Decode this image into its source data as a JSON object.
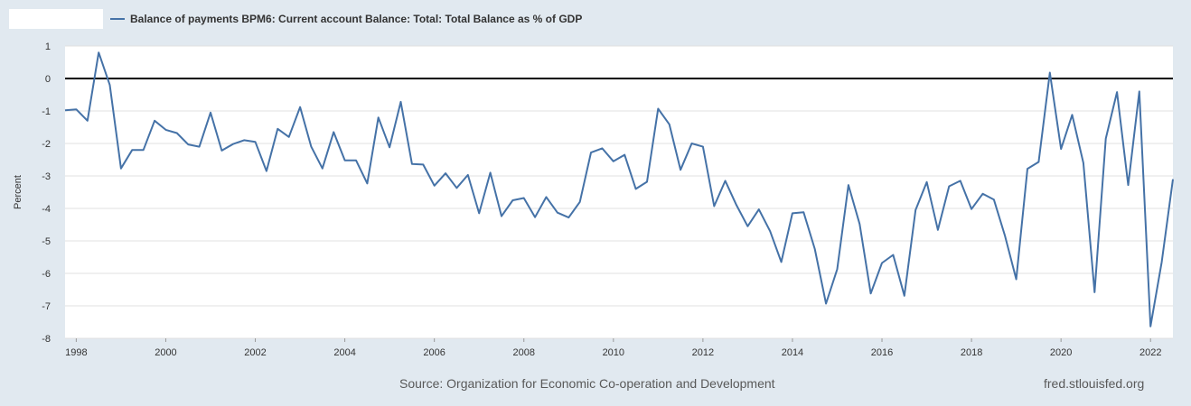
{
  "colors": {
    "series": "#4572a7",
    "zero_line": "#000000",
    "grid": "#e0e0e0",
    "plot_bg": "#ffffff"
  },
  "legend": {
    "label": "Balance of payments BPM6: Current account Balance: Total: Total Balance as % of GDP"
  },
  "footer": {
    "source": "Source: Organization for Economic Co-operation and Development",
    "brand": "fred.stlouisfed.org"
  },
  "chart_data": {
    "type": "line",
    "title": "",
    "xlabel": "",
    "ylabel": "Percent",
    "xlim": [
      1997.75,
      2022.5
    ],
    "ylim": [
      -8,
      1
    ],
    "yticks": [
      "1",
      "0",
      "-1",
      "-2",
      "-3",
      "-4",
      "-5",
      "-6",
      "-7",
      "-8"
    ],
    "xticks": [
      "1998",
      "2000",
      "2002",
      "2004",
      "2006",
      "2008",
      "2010",
      "2012",
      "2014",
      "2016",
      "2018",
      "2020",
      "2022"
    ],
    "reference_line": 0,
    "series": [
      {
        "name": "Balance of payments BPM6: Current account Balance: Total: Total Balance as % of GDP",
        "frequency": "quarterly",
        "start": 1997.75,
        "step": 0.25,
        "values": [
          -0.98,
          -0.95,
          -1.3,
          0.8,
          -0.2,
          -2.77,
          -2.2,
          -2.2,
          -1.3,
          -1.58,
          -1.68,
          -2.03,
          -2.1,
          -1.05,
          -2.22,
          -2.02,
          -1.9,
          -1.95,
          -2.85,
          -1.55,
          -1.8,
          -0.88,
          -2.1,
          -2.77,
          -1.65,
          -2.52,
          -2.52,
          -3.23,
          -1.2,
          -2.12,
          -0.72,
          -2.63,
          -2.65,
          -3.3,
          -2.92,
          -3.37,
          -2.97,
          -4.15,
          -2.9,
          -4.24,
          -3.75,
          -3.68,
          -4.27,
          -3.65,
          -4.13,
          -4.28,
          -3.8,
          -2.28,
          -2.15,
          -2.55,
          -2.35,
          -3.4,
          -3.18,
          -0.93,
          -1.41,
          -2.81,
          -2.0,
          -2.1,
          -3.93,
          -3.15,
          -3.9,
          -4.55,
          -4.03,
          -4.7,
          -5.65,
          -4.15,
          -4.12,
          -5.25,
          -6.93,
          -5.87,
          -3.28,
          -4.48,
          -6.62,
          -5.68,
          -5.43,
          -6.69,
          -4.05,
          -3.19,
          -4.66,
          -3.32,
          -3.15,
          -4.02,
          -3.55,
          -3.73,
          -4.85,
          -6.18,
          -2.78,
          -2.57,
          0.18,
          -2.17,
          -1.12,
          -2.6,
          -6.58,
          -1.85,
          -0.42,
          -3.28,
          -0.4,
          -7.63,
          -5.65,
          -3.1
        ]
      }
    ]
  }
}
